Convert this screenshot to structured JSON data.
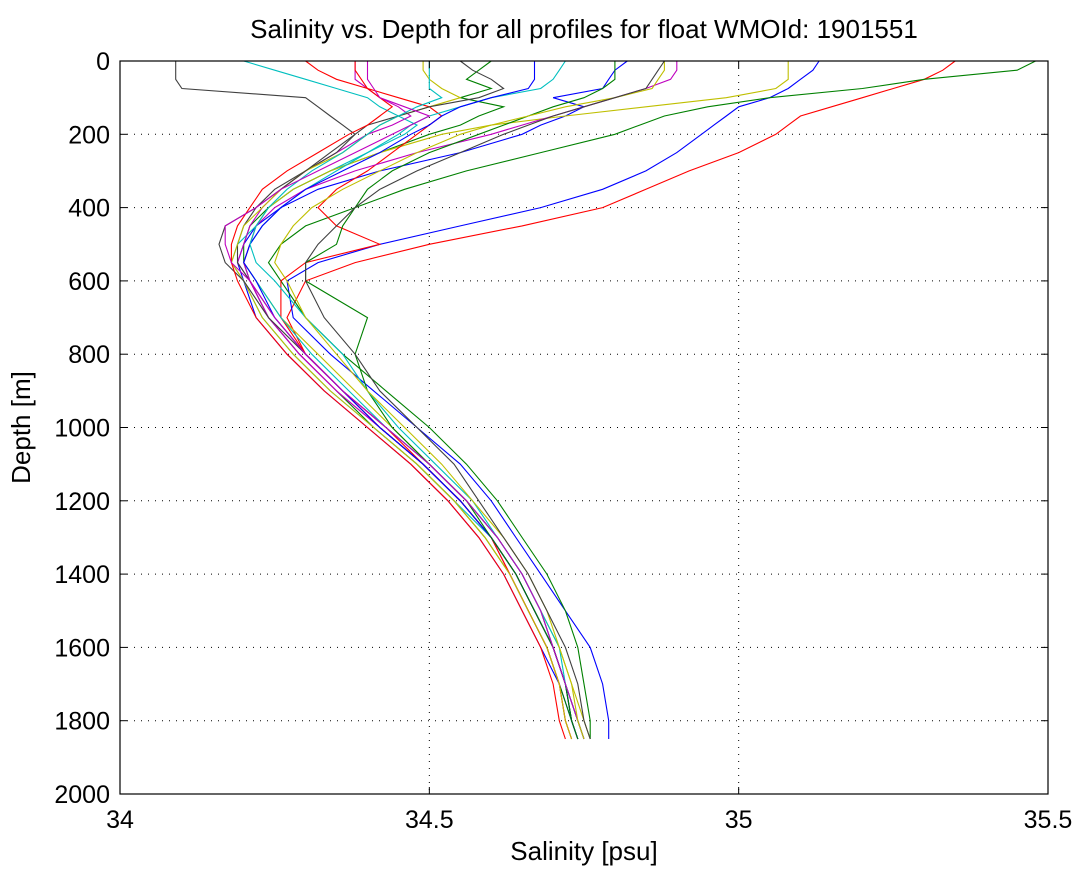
{
  "chart_data": {
    "type": "line",
    "title": "Salinity vs. Depth for all profiles for float WMOId: 1901551",
    "xlabel": "Salinity [psu]",
    "ylabel": "Depth [m]",
    "xlim": [
      34,
      35.5
    ],
    "ylim": [
      0,
      2000
    ],
    "y_reversed": true,
    "grid": true,
    "x_ticks": [
      34,
      34.5,
      35,
      35.5
    ],
    "x_tick_labels": [
      "34",
      "34.5",
      "35",
      "35.5"
    ],
    "y_ticks": [
      0,
      200,
      400,
      600,
      800,
      1000,
      1200,
      1400,
      1600,
      1800,
      2000
    ],
    "y_tick_labels": [
      "0",
      "200",
      "400",
      "600",
      "800",
      "1000",
      "1200",
      "1400",
      "1600",
      "1800",
      "2000"
    ],
    "color_cycle": [
      "#0000ff",
      "#008000",
      "#ff0000",
      "#00bfbf",
      "#bf00bf",
      "#bfbf00",
      "#404040"
    ],
    "depth_levels": [
      0,
      25,
      50,
      75,
      100,
      125,
      150,
      175,
      200,
      250,
      300,
      350,
      400,
      450,
      500,
      550,
      600,
      700,
      800,
      900,
      1000,
      1100,
      1200,
      1300,
      1400,
      1500,
      1600,
      1700,
      1800,
      1850
    ],
    "series": [
      {
        "values": [
          34.82,
          34.8,
          34.79,
          34.78,
          34.7,
          34.75,
          34.72,
          34.68,
          34.65,
          34.55,
          34.42,
          34.32,
          34.26,
          34.22,
          34.2,
          34.19,
          34.2,
          34.22,
          34.27,
          34.33,
          34.4,
          34.47,
          34.53,
          34.58,
          34.62,
          34.65,
          34.68,
          34.71,
          34.73,
          34.74
        ]
      },
      {
        "values": [
          34.6,
          34.58,
          34.56,
          34.6,
          34.55,
          34.62,
          34.58,
          34.55,
          34.5,
          34.42,
          34.34,
          34.28,
          34.24,
          34.21,
          34.2,
          34.2,
          34.21,
          34.24,
          34.29,
          34.35,
          34.41,
          34.48,
          34.54,
          34.59,
          34.63,
          34.66,
          34.69,
          34.71,
          34.73,
          34.74
        ]
      },
      {
        "values": [
          35.35,
          35.33,
          35.3,
          35.25,
          35.2,
          35.15,
          35.1,
          35.08,
          35.06,
          35.0,
          34.92,
          34.85,
          34.78,
          34.65,
          34.5,
          34.38,
          34.3,
          34.27,
          34.3,
          34.36,
          34.42,
          34.49,
          34.55,
          34.6,
          34.64,
          34.67,
          34.7,
          34.72,
          34.74,
          34.75
        ]
      },
      {
        "values": [
          34.2,
          34.25,
          34.3,
          34.35,
          34.4,
          34.42,
          34.45,
          34.48,
          34.46,
          34.4,
          34.34,
          34.28,
          34.24,
          34.22,
          34.19,
          34.18,
          34.2,
          34.23,
          34.28,
          34.34,
          34.41,
          34.48,
          34.54,
          34.6,
          34.64,
          34.67,
          34.7,
          34.72,
          34.74,
          34.75
        ]
      },
      {
        "values": [
          34.38,
          34.38,
          34.38,
          34.4,
          34.42,
          34.45,
          34.47,
          34.44,
          34.4,
          34.35,
          34.3,
          34.26,
          34.23,
          34.21,
          34.2,
          34.19,
          34.21,
          34.24,
          34.29,
          34.35,
          34.42,
          34.49,
          34.55,
          34.6,
          34.63,
          34.66,
          34.69,
          34.71,
          34.72,
          34.73
        ]
      },
      {
        "values": [
          35.08,
          35.08,
          35.08,
          35.06,
          34.98,
          34.85,
          34.72,
          34.6,
          34.52,
          34.42,
          34.34,
          34.28,
          34.24,
          34.22,
          34.21,
          34.2,
          34.22,
          34.26,
          34.32,
          34.38,
          34.44,
          34.5,
          34.56,
          34.61,
          34.65,
          34.68,
          34.71,
          34.73,
          34.75,
          34.76
        ]
      },
      {
        "values": [
          34.09,
          34.09,
          34.09,
          34.1,
          34.3,
          34.32,
          34.34,
          34.36,
          34.38,
          34.35,
          34.3,
          34.25,
          34.22,
          34.2,
          34.19,
          34.19,
          34.21,
          34.25,
          34.3,
          34.36,
          34.43,
          34.5,
          34.56,
          34.61,
          34.65,
          34.68,
          34.7,
          34.72,
          34.74,
          34.75
        ]
      },
      {
        "values": [
          35.13,
          35.12,
          35.1,
          35.08,
          35.05,
          35.0,
          34.98,
          34.96,
          34.94,
          34.9,
          34.85,
          34.78,
          34.68,
          34.55,
          34.42,
          34.32,
          34.27,
          34.28,
          34.34,
          34.41,
          34.48,
          34.55,
          34.6,
          34.64,
          34.68,
          34.72,
          34.76,
          34.78,
          34.79,
          34.79
        ]
      },
      {
        "values": [
          35.48,
          35.45,
          35.3,
          35.2,
          35.05,
          34.95,
          34.88,
          34.84,
          34.8,
          34.68,
          34.56,
          34.46,
          34.38,
          34.3,
          34.26,
          34.24,
          34.26,
          34.3,
          34.36,
          34.43,
          34.5,
          34.56,
          34.61,
          34.65,
          34.69,
          34.72,
          34.74,
          34.75,
          34.76,
          34.76
        ]
      },
      {
        "values": [
          34.3,
          34.32,
          34.35,
          34.4,
          34.45,
          34.5,
          34.52,
          34.5,
          34.48,
          34.44,
          34.4,
          34.35,
          34.32,
          34.35,
          34.42,
          34.3,
          34.26,
          34.26,
          34.3,
          34.36,
          34.43,
          34.49,
          34.55,
          34.6,
          34.63,
          34.66,
          34.69,
          34.71,
          34.72,
          34.73
        ]
      },
      {
        "values": [
          34.72,
          34.71,
          34.7,
          34.68,
          34.6,
          34.55,
          34.5,
          34.47,
          34.45,
          34.4,
          34.35,
          34.3,
          34.26,
          34.23,
          34.21,
          34.2,
          34.22,
          34.26,
          34.31,
          34.37,
          34.43,
          34.5,
          34.56,
          34.61,
          34.65,
          34.68,
          34.7,
          34.72,
          34.73,
          34.74
        ]
      },
      {
        "values": [
          34.9,
          34.9,
          34.89,
          34.85,
          34.8,
          34.75,
          34.7,
          34.65,
          34.6,
          34.48,
          34.38,
          34.3,
          34.25,
          34.22,
          34.21,
          34.2,
          34.21,
          34.24,
          34.29,
          34.35,
          34.42,
          34.49,
          34.55,
          34.6,
          34.64,
          34.67,
          34.7,
          34.72,
          34.73,
          34.74
        ]
      },
      {
        "values": [
          34.49,
          34.49,
          34.5,
          34.52,
          34.55,
          34.5,
          34.45,
          34.42,
          34.4,
          34.36,
          34.3,
          34.26,
          34.23,
          34.2,
          34.19,
          34.18,
          34.2,
          34.23,
          34.28,
          34.34,
          34.41,
          34.48,
          34.54,
          34.59,
          34.63,
          34.66,
          34.69,
          34.71,
          34.72,
          34.73
        ]
      },
      {
        "values": [
          34.55,
          34.57,
          34.6,
          34.62,
          34.58,
          34.5,
          34.45,
          34.4,
          34.38,
          34.34,
          34.3,
          34.26,
          34.22,
          34.17,
          34.16,
          34.17,
          34.2,
          34.24,
          34.3,
          34.36,
          34.42,
          34.49,
          34.55,
          34.6,
          34.64,
          34.67,
          34.7,
          34.72,
          34.73,
          34.74
        ]
      },
      {
        "values": [
          34.67,
          34.67,
          34.67,
          34.66,
          34.6,
          34.55,
          34.52,
          34.5,
          34.47,
          34.42,
          34.36,
          34.3,
          34.26,
          34.23,
          34.21,
          34.2,
          34.22,
          34.25,
          34.3,
          34.36,
          34.42,
          34.49,
          34.55,
          34.6,
          34.64,
          34.67,
          34.7,
          34.72,
          34.73,
          34.74
        ]
      },
      {
        "values": [
          34.8,
          34.8,
          34.8,
          34.78,
          34.75,
          34.7,
          34.66,
          34.62,
          34.58,
          34.5,
          34.44,
          34.4,
          34.38,
          34.36,
          34.35,
          34.3,
          34.3,
          34.4,
          34.38,
          34.4,
          34.44,
          34.5,
          34.56,
          34.6,
          34.64,
          34.67,
          34.7,
          34.72,
          34.73,
          34.74
        ]
      },
      {
        "values": [
          34.38,
          34.38,
          34.39,
          34.4,
          34.42,
          34.44,
          34.42,
          34.4,
          34.37,
          34.32,
          34.27,
          34.23,
          34.21,
          34.19,
          34.18,
          34.18,
          34.19,
          34.22,
          34.27,
          34.33,
          34.4,
          34.47,
          34.53,
          34.58,
          34.62,
          34.65,
          34.68,
          34.7,
          34.71,
          34.72
        ]
      },
      {
        "values": [
          34.5,
          34.5,
          34.5,
          34.5,
          34.52,
          34.48,
          34.45,
          34.42,
          34.4,
          34.36,
          34.31,
          34.27,
          34.24,
          34.22,
          34.21,
          34.22,
          34.25,
          34.3,
          34.36,
          34.4,
          34.45,
          34.51,
          34.57,
          34.61,
          34.65,
          34.68,
          34.71,
          34.72,
          34.74,
          34.75
        ]
      },
      {
        "values": [
          34.4,
          34.4,
          34.4,
          34.41,
          34.42,
          34.46,
          34.5,
          34.47,
          34.44,
          34.38,
          34.32,
          34.26,
          34.22,
          34.17,
          34.17,
          34.18,
          34.21,
          34.25,
          34.3,
          34.36,
          34.43,
          34.5,
          34.56,
          34.61,
          34.65,
          34.68,
          34.7,
          34.72,
          34.74,
          34.75
        ]
      },
      {
        "values": [
          34.88,
          34.88,
          34.87,
          34.86,
          34.8,
          34.72,
          34.66,
          34.6,
          34.55,
          34.48,
          34.42,
          34.36,
          34.31,
          34.28,
          34.26,
          34.25,
          34.27,
          34.3,
          34.35,
          34.4,
          34.46,
          34.52,
          34.57,
          34.62,
          34.66,
          34.69,
          34.71,
          34.73,
          34.74,
          34.75
        ]
      },
      {
        "values": [
          34.88,
          34.87,
          34.86,
          34.85,
          34.8,
          34.75,
          34.7,
          34.66,
          34.62,
          34.55,
          34.48,
          34.42,
          34.38,
          34.35,
          34.32,
          34.3,
          34.3,
          34.33,
          34.38,
          34.42,
          34.48,
          34.54,
          34.58,
          34.62,
          34.66,
          34.69,
          34.72,
          34.74,
          34.75,
          34.76
        ]
      }
    ]
  }
}
